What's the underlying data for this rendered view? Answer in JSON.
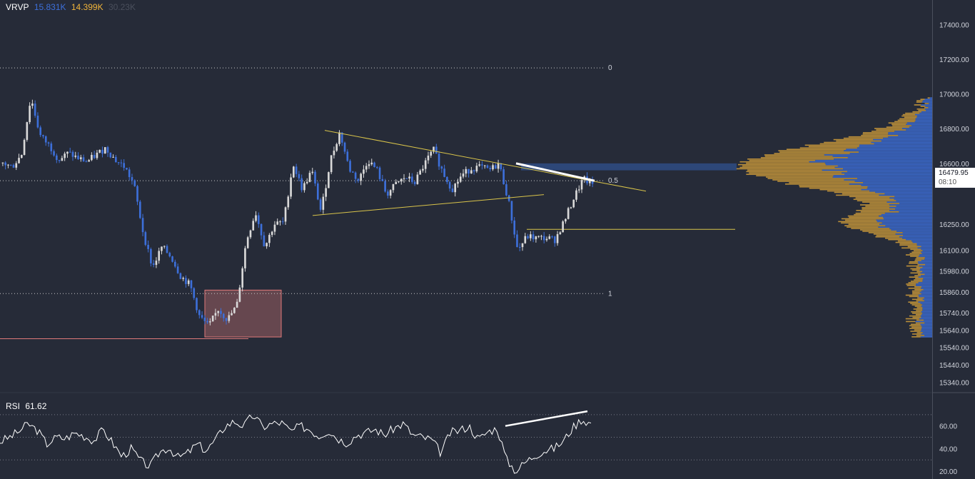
{
  "legend": {
    "indicator": "VRVP",
    "up_volume": "15.831K",
    "down_volume": "14.399K",
    "total_volume": "30.23K"
  },
  "rsi_legend": {
    "name": "RSI",
    "value": "61.62"
  },
  "last_price": {
    "value": "16479.95",
    "countdown": "08:10"
  },
  "colors": {
    "background": "#262b38",
    "up_candle": "#d9d9d9",
    "down_candle": "#3d6fd9",
    "trendline": "#d9c44a",
    "volume_up": "#3d6fd9",
    "volume_down": "#d6a13a",
    "zone": "#e07a7a",
    "highlight_band": "#2f4a80"
  },
  "chart_data": [
    {
      "type": "candlestick",
      "title": "",
      "y_axis_ticks": [
        "17400.00",
        "17200.00",
        "17000.00",
        "16800.00",
        "16600.00",
        "16250.00",
        "16100.00",
        "15980.00",
        "15860.00",
        "15740.00",
        "15640.00",
        "15540.00",
        "15440.00",
        "15340.00"
      ],
      "ylim": [
        15300,
        17500
      ],
      "close_path": [
        16600,
        16580,
        16650,
        16980,
        16760,
        16700,
        16620,
        16660,
        16630,
        16610,
        16650,
        16690,
        16620,
        16580,
        16480,
        16200,
        16000,
        16120,
        16060,
        15950,
        15900,
        15720,
        15660,
        15760,
        15700,
        15780,
        16150,
        16320,
        16120,
        16250,
        16260,
        16600,
        16450,
        16560,
        16320,
        16620,
        16780,
        16570,
        16500,
        16620,
        16560,
        16420,
        16480,
        16520,
        16490,
        16590,
        16680,
        16550,
        16450,
        16530,
        16570,
        16580,
        16560,
        16600,
        16390,
        16100,
        16180,
        16170,
        16170,
        16160,
        16270,
        16400,
        16510,
        16480
      ],
      "fib_levels": [
        {
          "label": "0",
          "price": 17150
        },
        {
          "label": "0.5",
          "price": 16500
        },
        {
          "label": "1",
          "price": 15850
        }
      ],
      "horizontal_lines": [
        {
          "price": 15590,
          "color": "zone"
        },
        {
          "price": 16220,
          "color": "trendline"
        }
      ],
      "rectangles": [
        {
          "from_price": 15600,
          "to_price": 15870,
          "color": "zone"
        },
        {
          "from_price": 16560,
          "to_price": 16600,
          "color": "highlight_band"
        }
      ]
    },
    {
      "type": "line",
      "title": "RSI",
      "y_axis_ticks": [
        "60.00",
        "40.00",
        "20.00"
      ],
      "ylim": [
        15,
        80
      ],
      "levels": [
        70,
        50,
        30
      ],
      "values": [
        46,
        50,
        55,
        62,
        56,
        44,
        50,
        49,
        54,
        51,
        47,
        57,
        45,
        33,
        40,
        29,
        24,
        37,
        41,
        32,
        36,
        44,
        38,
        48,
        60,
        64,
        60,
        70,
        59,
        62,
        63,
        55,
        60,
        57,
        51,
        56,
        49,
        45,
        52,
        54,
        57,
        52,
        58,
        62,
        52,
        50,
        48,
        36,
        54,
        56,
        60,
        48,
        55,
        58,
        30,
        20,
        28,
        34,
        38,
        40,
        46,
        58,
        66,
        62
      ]
    }
  ]
}
